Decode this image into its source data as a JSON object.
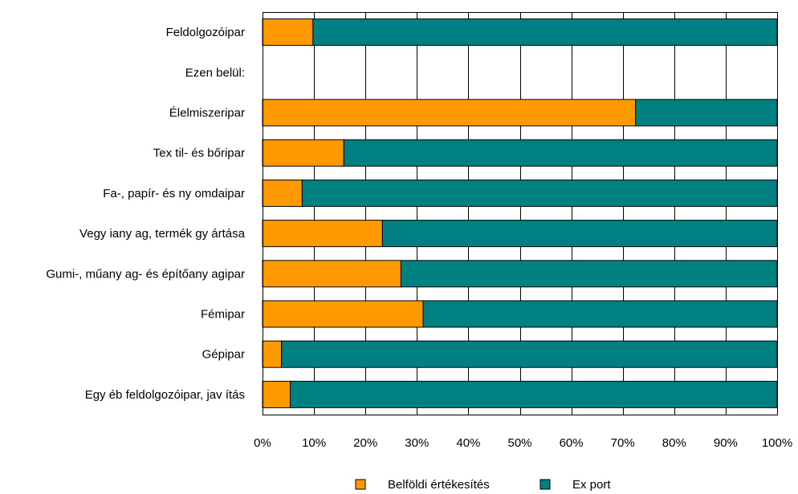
{
  "chart_data": {
    "type": "bar",
    "orientation": "horizontal",
    "stacked": true,
    "percent": true,
    "categories": [
      "Feldolgozóipar",
      "Ezen belül:",
      "Élelmiszeripar",
      "Tex til- és bőripar",
      "Fa-, papír- és ny omdaipar",
      "Vegy iany ag, termék gy ártása",
      "Gumi-, műany ag- és építőany agipar",
      "Fémipar",
      "Gépipar",
      "Egy éb feldolgozóipar, jav ítás"
    ],
    "series": [
      {
        "name": "Belföldi értékesítés",
        "color": "#FF9900",
        "values": [
          9.8,
          null,
          72.5,
          15.8,
          7.7,
          23.3,
          26.9,
          31.2,
          3.7,
          5.4
        ]
      },
      {
        "name": "Ex port",
        "color": "#008080",
        "values": [
          90.2,
          null,
          27.5,
          84.2,
          92.3,
          76.7,
          73.1,
          68.8,
          96.3,
          94.6
        ]
      }
    ],
    "xlim": [
      0,
      100
    ],
    "xticks": [
      "0%",
      "10%",
      "20%",
      "30%",
      "40%",
      "50%",
      "60%",
      "70%",
      "80%",
      "90%",
      "100%"
    ],
    "grid": true,
    "legend_position": "bottom",
    "title": "",
    "xlabel": "",
    "ylabel": ""
  }
}
